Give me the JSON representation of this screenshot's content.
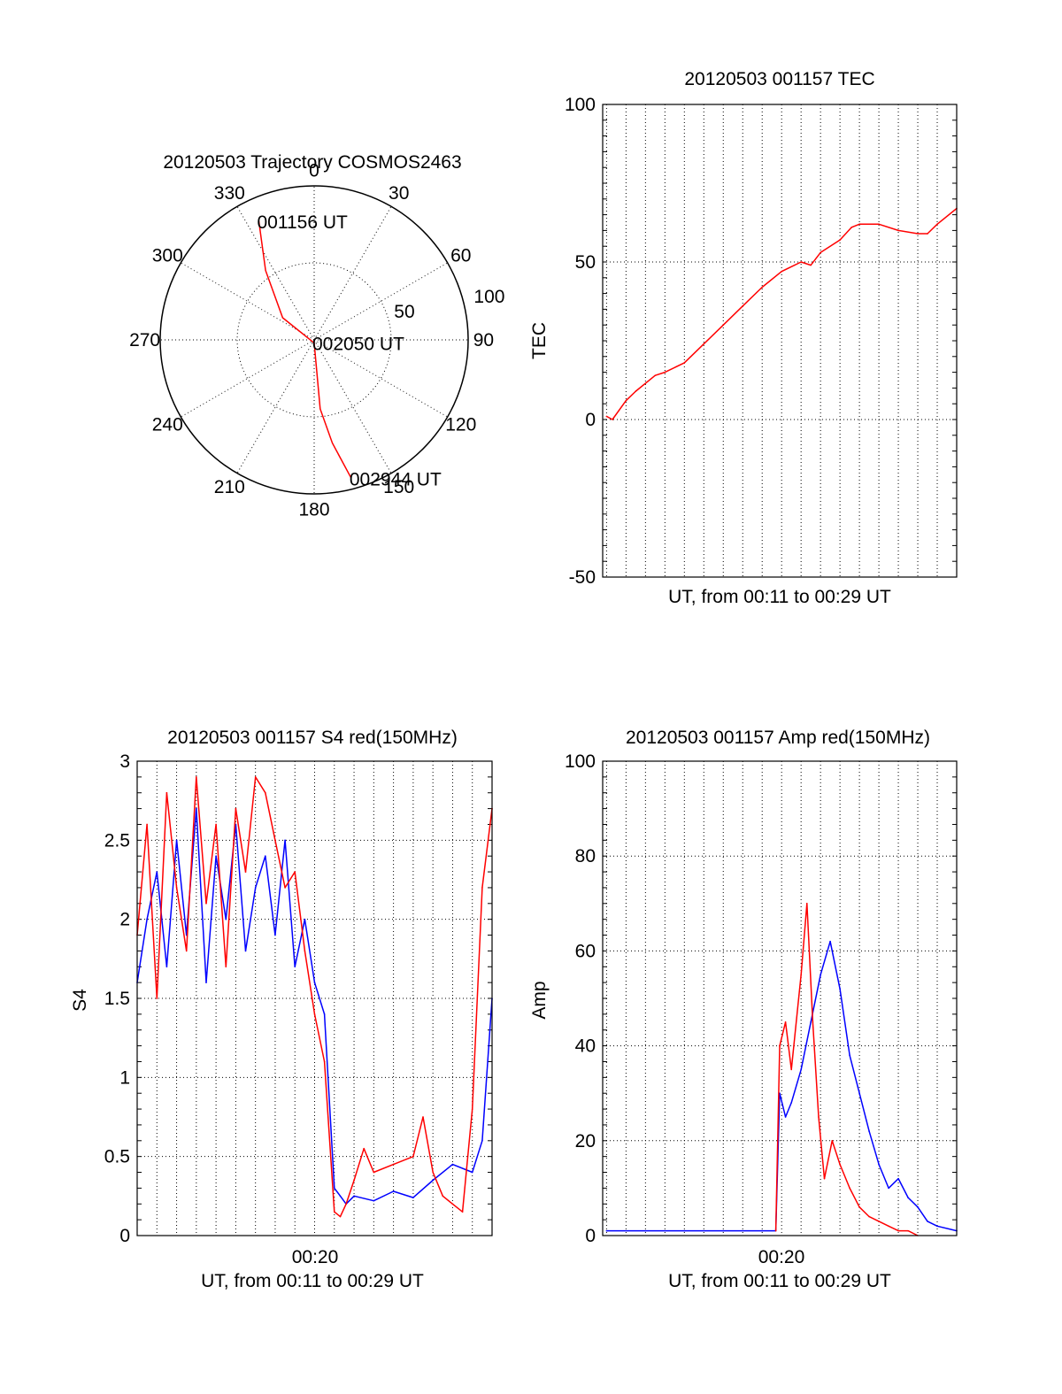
{
  "chart_data": [
    {
      "id": "trajectory",
      "type": "polar",
      "title": "20120503 Trajectory COSMOS2463",
      "angle_ticks": [
        "0",
        "30",
        "60",
        "90",
        "120",
        "150",
        "180",
        "210",
        "240",
        "270",
        "300",
        "330"
      ],
      "angle_values": [
        0,
        30,
        60,
        90,
        120,
        150,
        180,
        210,
        240,
        270,
        300,
        330
      ],
      "radial_ticks": [
        "50",
        "100"
      ],
      "radial_values": [
        50,
        100
      ],
      "rlim": [
        0,
        100
      ],
      "grid": true,
      "track_color": "#ff0000",
      "track": [
        {
          "az": 335,
          "r": 85
        },
        {
          "az": 325,
          "r": 55
        },
        {
          "az": 305,
          "r": 25
        },
        {
          "az": 180,
          "r": 2
        },
        {
          "az": 175,
          "r": 45
        },
        {
          "az": 170,
          "r": 68
        },
        {
          "az": 165,
          "r": 93
        }
      ],
      "annotations": [
        {
          "text": "001156 UT",
          "az": 335,
          "r": 85
        },
        {
          "text": "002050 UT",
          "az": 180,
          "r": 2
        },
        {
          "text": "002944 UT",
          "az": 165,
          "r": 93
        }
      ]
    },
    {
      "id": "tec",
      "type": "line",
      "title": "20120503 001157 TEC",
      "xlabel": "UT, from 00:11 to 00:29 UT",
      "ylabel": "TEC",
      "xlim": [
        -0.2,
        18
      ],
      "ylim": [
        -50,
        100
      ],
      "yticks": [
        "-50",
        "0",
        "50",
        "100"
      ],
      "yvals": [
        -50,
        0,
        50,
        100
      ],
      "xgrid_count": 18,
      "grid": true,
      "series": [
        {
          "color": "#ff0000",
          "x": [
            0,
            0.3,
            1,
            1.5,
            2.5,
            3,
            4,
            5,
            6,
            7,
            8,
            9,
            10,
            10.5,
            11,
            12,
            12.6,
            13,
            14,
            15,
            16,
            16.5,
            17,
            18
          ],
          "y": [
            1,
            0,
            6,
            9,
            14,
            15,
            18,
            24,
            30,
            36,
            42,
            47,
            50,
            49,
            53,
            57,
            61,
            62,
            62,
            60,
            59,
            59,
            62,
            67
          ]
        }
      ]
    },
    {
      "id": "s4",
      "type": "line",
      "title": "20120503 001157 S4 red(150MHz)",
      "xlabel": "UT, from 00:11 to 00:29 UT",
      "ylabel": "S4",
      "xtick_label": "00:20",
      "xlim": [
        0,
        18
      ],
      "ylim": [
        0,
        3
      ],
      "yticks": [
        "0",
        "0.5",
        "1",
        "1.5",
        "2",
        "2.5",
        "3"
      ],
      "yvals": [
        0,
        0.5,
        1,
        1.5,
        2,
        2.5,
        3
      ],
      "xgrid_count": 18,
      "grid": true,
      "series": [
        {
          "color": "#0000ff",
          "x": [
            0,
            0.5,
            1,
            1.5,
            2,
            2.5,
            3,
            3.5,
            4,
            4.5,
            5,
            5.5,
            6,
            6.5,
            7,
            7.5,
            8,
            8.5,
            9,
            9.5,
            10,
            10.3,
            10.6,
            11,
            12,
            13,
            14,
            15,
            16,
            17,
            17.5,
            18
          ],
          "y": [
            1.6,
            2.0,
            2.3,
            1.7,
            2.5,
            1.9,
            2.7,
            1.6,
            2.4,
            2.0,
            2.6,
            1.8,
            2.2,
            2.4,
            1.9,
            2.5,
            1.7,
            2.0,
            1.6,
            1.4,
            0.3,
            0.25,
            0.2,
            0.25,
            0.22,
            0.28,
            0.24,
            0.35,
            0.45,
            0.4,
            0.6,
            1.5
          ]
        },
        {
          "color": "#ff0000",
          "x": [
            0,
            0.5,
            1,
            1.5,
            2,
            2.5,
            3,
            3.5,
            4,
            4.5,
            5,
            5.5,
            6,
            6.5,
            7,
            7.5,
            8,
            8.5,
            9,
            9.5,
            10,
            10.3,
            10.6,
            11,
            11.5,
            12,
            13,
            14,
            14.5,
            15,
            15.5,
            16,
            16.5,
            17,
            17.5,
            18
          ],
          "y": [
            1.9,
            2.6,
            1.5,
            2.8,
            2.2,
            1.8,
            2.9,
            2.1,
            2.6,
            1.7,
            2.7,
            2.3,
            2.9,
            2.8,
            2.5,
            2.2,
            2.3,
            1.8,
            1.4,
            1.1,
            0.15,
            0.12,
            0.2,
            0.35,
            0.55,
            0.4,
            0.45,
            0.5,
            0.75,
            0.4,
            0.25,
            0.2,
            0.15,
            0.8,
            2.2,
            2.7
          ]
        }
      ]
    },
    {
      "id": "amp",
      "type": "line",
      "title": "20120503 001157 Amp red(150MHz)",
      "xlabel": "UT, from 00:11 to 00:29 UT",
      "ylabel": "Amp",
      "xtick_label": "00:20",
      "xlim": [
        -0.2,
        18
      ],
      "ylim": [
        0,
        100
      ],
      "yticks": [
        "0",
        "20",
        "40",
        "60",
        "80",
        "100"
      ],
      "yvals": [
        0,
        20,
        40,
        60,
        80,
        100
      ],
      "xgrid_count": 18,
      "grid": true,
      "series": [
        {
          "color": "#0000ff",
          "x": [
            0,
            2,
            4,
            6,
            8,
            8.7,
            8.9,
            9.2,
            9.5,
            10,
            10.5,
            11,
            11.5,
            12,
            12.5,
            13,
            13.5,
            14,
            14.5,
            15,
            15.5,
            16,
            16.5,
            17,
            18
          ],
          "y": [
            1,
            1,
            1,
            1,
            1,
            1,
            30,
            25,
            28,
            35,
            45,
            55,
            62,
            52,
            38,
            30,
            22,
            15,
            10,
            12,
            8,
            6,
            3,
            2,
            1
          ]
        },
        {
          "color": "#ff0000",
          "x": [
            8.7,
            8.9,
            9.2,
            9.5,
            10,
            10.3,
            10.6,
            10.9,
            11.2,
            11.6,
            12,
            12.5,
            13,
            13.5,
            14,
            14.5,
            15,
            15.5,
            16
          ],
          "y": [
            1,
            40,
            45,
            35,
            55,
            70,
            45,
            25,
            12,
            20,
            15,
            10,
            6,
            4,
            3,
            2,
            1,
            1,
            0
          ]
        }
      ]
    }
  ]
}
